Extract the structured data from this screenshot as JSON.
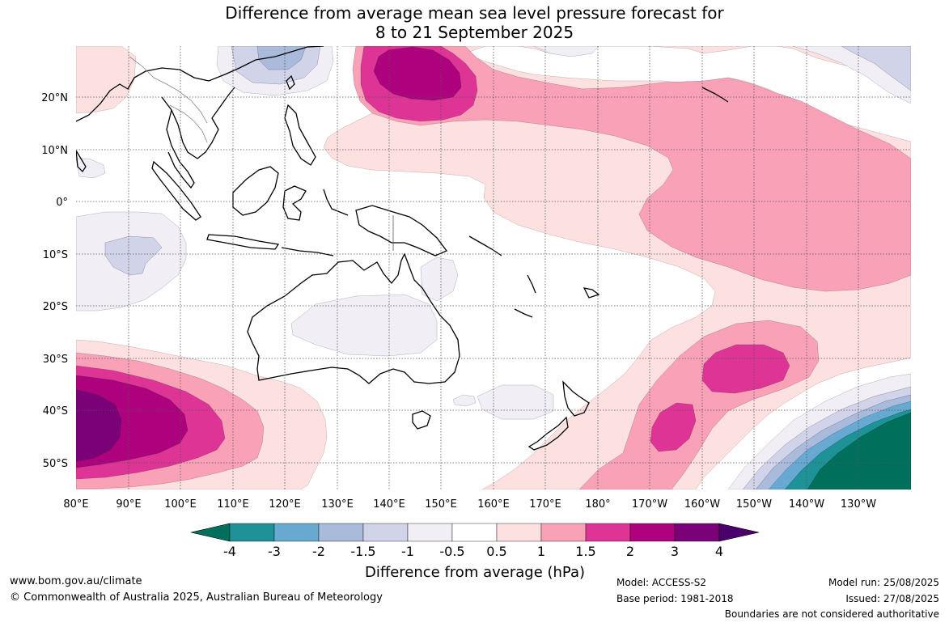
{
  "title_line1": "Difference from average mean sea level pressure forecast for",
  "title_line2": "8 to 21 September 2025",
  "lat_labels": [
    "20°N",
    "10°N",
    "0°",
    "10°S",
    "20°S",
    "30°S",
    "40°S",
    "50°S"
  ],
  "lon_labels": [
    "80°E",
    "90°E",
    "100°E",
    "110°E",
    "120°E",
    "130°E",
    "140°E",
    "150°E",
    "160°E",
    "170°E",
    "180°",
    "170°W",
    "160°W",
    "150°W",
    "140°W",
    "130°W"
  ],
  "colorbar": {
    "label": "Difference from average (hPa)",
    "ticks": [
      "-4",
      "-3",
      "-2",
      "-1.5",
      "-1",
      "-0.5",
      "0.5",
      "1",
      "1.5",
      "2",
      "3",
      "4"
    ],
    "colors": [
      "#00705c",
      "#1f9298",
      "#68a9d2",
      "#a9badb",
      "#d1d3e8",
      "#f1eff5",
      "#ffffff",
      "#fde0e0",
      "#f9a1b6",
      "#dd3496",
      "#ae017e",
      "#7a0177",
      "#49006a"
    ]
  },
  "colors": {
    "land_outline": "#000000",
    "grid": "#555555"
  },
  "footer": {
    "website": "www.bom.gov.au/climate",
    "copyright": "© Commonwealth of Australia 2025, Australian Bureau of Meteorology",
    "model": "Model: ACCESS-S2",
    "base_period": "Base period: 1981-2018",
    "model_run": "Model run: 25/08/2025",
    "issued": "Issued: 27/08/2025",
    "disclaimer": "Boundaries are not considered authoritative"
  }
}
